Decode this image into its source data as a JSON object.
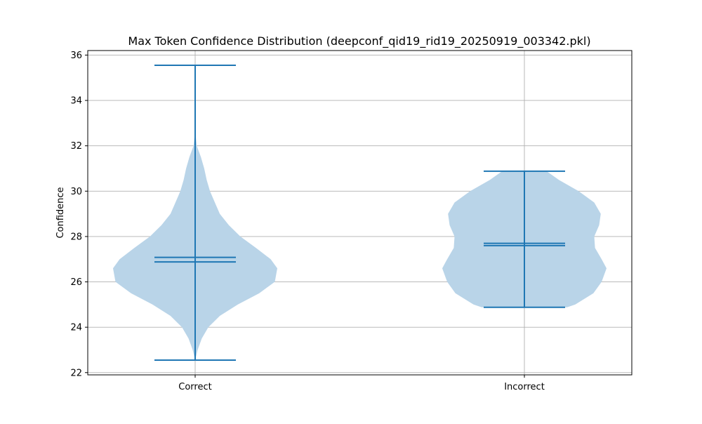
{
  "chart_data": {
    "type": "violin",
    "title": "Max Token Confidence Distribution (deepconf_qid19_rid19_20250919_003342.pkl)",
    "xlabel": "",
    "ylabel": "Confidence",
    "categories": [
      "Correct",
      "Incorrect"
    ],
    "ylim": [
      21.9,
      36.2
    ],
    "yticks": [
      22,
      24,
      26,
      28,
      30,
      32,
      34,
      36
    ],
    "grid": true,
    "colors": {
      "fill": "#b9d4e8",
      "line": "#1f77b4",
      "grid": "#b0b0b0"
    },
    "violins": [
      {
        "category": "Correct",
        "min": 22.55,
        "max": 35.55,
        "mean": 27.08,
        "median": 26.88,
        "density": [
          [
            22.55,
            0.0
          ],
          [
            23.0,
            0.03
          ],
          [
            23.5,
            0.08
          ],
          [
            24.0,
            0.16
          ],
          [
            24.5,
            0.3
          ],
          [
            25.0,
            0.52
          ],
          [
            25.5,
            0.78
          ],
          [
            26.0,
            0.97
          ],
          [
            26.6,
            1.0
          ],
          [
            27.0,
            0.92
          ],
          [
            27.5,
            0.74
          ],
          [
            28.0,
            0.55
          ],
          [
            28.5,
            0.41
          ],
          [
            29.0,
            0.3
          ],
          [
            29.5,
            0.24
          ],
          [
            30.0,
            0.18
          ],
          [
            30.5,
            0.14
          ],
          [
            31.0,
            0.11
          ],
          [
            31.5,
            0.07
          ],
          [
            32.0,
            0.02
          ],
          [
            32.5,
            0.005
          ],
          [
            35.55,
            0.0
          ]
        ]
      },
      {
        "category": "Incorrect",
        "min": 24.88,
        "max": 30.88,
        "mean": 27.7,
        "median": 27.6,
        "density": [
          [
            24.88,
            0.52
          ],
          [
            25.0,
            0.62
          ],
          [
            25.5,
            0.84
          ],
          [
            26.0,
            0.94
          ],
          [
            26.6,
            1.0
          ],
          [
            27.0,
            0.94
          ],
          [
            27.5,
            0.86
          ],
          [
            28.0,
            0.85
          ],
          [
            28.5,
            0.91
          ],
          [
            29.0,
            0.93
          ],
          [
            29.5,
            0.85
          ],
          [
            30.0,
            0.66
          ],
          [
            30.5,
            0.42
          ],
          [
            30.88,
            0.27
          ]
        ]
      }
    ]
  }
}
